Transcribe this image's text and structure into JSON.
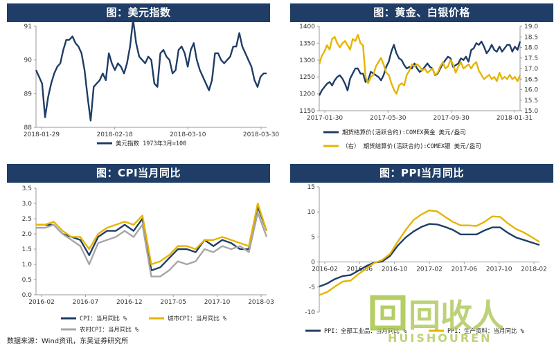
{
  "footer": {
    "source": "数据来源：Wind资讯，东吴证券研究所"
  },
  "watermark": {
    "text": "回收人",
    "sub": "HUISHOUREN"
  },
  "colors": {
    "header_bg": "#1f3d66",
    "navy": "#1f3d66",
    "gold": "#e6b400",
    "gray": "#a6a6a6"
  },
  "chart_data": [
    {
      "id": "usd",
      "type": "line",
      "title": "图：美元指数",
      "x_ticks": [
        "2018-01-29",
        "2018-02-18",
        "2018-03-10",
        "2018-03-30"
      ],
      "ylim": [
        88,
        91
      ],
      "yticks": [
        88,
        89,
        90,
        91
      ],
      "series": [
        {
          "name": "美元指数 1973年3月=100",
          "color": "#1f3d66",
          "values": [
            89.7,
            89.5,
            89.3,
            88.3,
            88.9,
            89.3,
            89.6,
            89.8,
            89.9,
            90.3,
            90.6,
            90.6,
            90.7,
            90.5,
            90.4,
            90.2,
            89.7,
            88.9,
            88.2,
            89.2,
            89.3,
            89.4,
            89.6,
            89.4,
            90.2,
            89.9,
            89.7,
            89.9,
            89.8,
            89.6,
            89.9,
            90.4,
            91.2,
            90.5,
            90.1,
            90.0,
            89.9,
            90.1,
            90.0,
            89.3,
            89.2,
            90.2,
            90.3,
            90.1,
            90.0,
            89.6,
            89.7,
            90.3,
            90.4,
            90.2,
            89.8,
            90.3,
            90.5,
            90.0,
            89.7,
            89.5,
            89.3,
            89.1,
            89.4,
            90.2,
            90.2,
            90.0,
            89.9,
            90.0,
            90.1,
            90.4,
            90.4,
            90.8,
            90.4,
            90.2,
            90.0,
            89.8,
            89.4,
            89.2,
            89.5,
            89.6,
            89.6
          ]
        }
      ]
    },
    {
      "id": "gold",
      "type": "line",
      "title": "图：黄金、白银价格",
      "x_ticks": [
        "2017-01-30",
        "2017-05-30",
        "2017-09-30",
        "2018-01-31"
      ],
      "ylim": [
        1150,
        1400
      ],
      "yticks": [
        1150,
        1200,
        1250,
        1300,
        1350,
        1400
      ],
      "y2lim": [
        15.0,
        19.0
      ],
      "y2ticks": [
        "15.0",
        "15.5",
        "16.0",
        "16.5",
        "17.0",
        "17.5",
        "18.0",
        "18.5",
        "19.0"
      ],
      "series": [
        {
          "name": "期货结算价(活跃合约):COMEX黄金 美元/盎司",
          "axis": "left",
          "color": "#1f3d66",
          "values": [
            1195,
            1210,
            1220,
            1230,
            1235,
            1225,
            1240,
            1250,
            1255,
            1245,
            1230,
            1210,
            1245,
            1260,
            1275,
            1275,
            1260,
            1260,
            1235,
            1240,
            1265,
            1260,
            1255,
            1250,
            1240,
            1255,
            1280,
            1295,
            1325,
            1345,
            1320,
            1305,
            1300,
            1285,
            1275,
            1280,
            1275,
            1290,
            1275,
            1265,
            1270,
            1280,
            1290,
            1280,
            1275,
            1255,
            1260,
            1275,
            1290,
            1300,
            1310,
            1305,
            1280,
            1285,
            1290,
            1305,
            1300,
            1310,
            1295,
            1330,
            1335,
            1350,
            1345,
            1355,
            1340,
            1320,
            1330,
            1345,
            1330,
            1325,
            1340,
            1325,
            1335,
            1345,
            1345,
            1325,
            1340,
            1330,
            1355
          ]
        },
        {
          "name": "（右） 期货结算价(活跃合约):COMEX银 美元/盎司",
          "axis": "right",
          "color": "#e6b400",
          "values": [
            17.2,
            17.6,
            17.8,
            18.1,
            17.9,
            18.4,
            18.5,
            18.2,
            18.0,
            18.2,
            18.3,
            18.1,
            17.9,
            18.4,
            18.3,
            18.6,
            18.2,
            18.1,
            16.6,
            16.3,
            16.6,
            16.7,
            17.1,
            17.3,
            17.5,
            17.2,
            16.8,
            16.7,
            16.3,
            16.0,
            15.8,
            16.2,
            16.3,
            16.2,
            16.7,
            16.9,
            17.2,
            17.1,
            17.2,
            17.1,
            16.9,
            17.0,
            16.8,
            16.9,
            17.0,
            16.7,
            16.8,
            17.1,
            17.3,
            17.0,
            17.1,
            17.4,
            17.2,
            16.8,
            17.1,
            17.3,
            17.0,
            17.1,
            17.2,
            17.0,
            17.2,
            17.3,
            16.9,
            16.7,
            16.5,
            16.6,
            16.7,
            16.5,
            16.6,
            16.4,
            16.8,
            16.5,
            16.6,
            16.5,
            16.7,
            16.5,
            16.6,
            16.4,
            16.7
          ]
        }
      ]
    },
    {
      "id": "cpi",
      "type": "line",
      "title": "图：CPI当月同比",
      "x_ticks": [
        "2016-02",
        "2016-07",
        "2016-12",
        "2017-05",
        "2017-10",
        "2018-03"
      ],
      "ylim": [
        0,
        3.5
      ],
      "yticks": [
        "0.0",
        "0.5",
        "1.0",
        "1.5",
        "2.0",
        "2.5",
        "3.0",
        "3.5"
      ],
      "series": [
        {
          "name": "CPI：当月同比 %",
          "color": "#1f3d66",
          "values": [
            2.3,
            2.3,
            2.3,
            2.0,
            1.9,
            1.8,
            1.3,
            1.9,
            2.1,
            2.1,
            2.3,
            2.1,
            2.5,
            0.8,
            0.9,
            1.2,
            1.5,
            1.5,
            1.4,
            1.8,
            1.6,
            1.8,
            1.7,
            1.5,
            1.5,
            2.9,
            2.1
          ]
        },
        {
          "name": "城市CPI：当月同比 %",
          "color": "#e6b400",
          "values": [
            2.3,
            2.3,
            2.4,
            2.1,
            1.9,
            1.9,
            1.5,
            2.0,
            2.2,
            2.3,
            2.4,
            2.3,
            2.6,
            1.0,
            1.1,
            1.3,
            1.6,
            1.6,
            1.5,
            1.8,
            1.8,
            1.9,
            1.8,
            1.7,
            1.6,
            3.0,
            2.1
          ]
        },
        {
          "name": "农村CPI：当月同比 %",
          "color": "#a6a6a6",
          "values": [
            2.2,
            2.2,
            2.3,
            2.0,
            1.8,
            1.6,
            1.0,
            1.7,
            1.8,
            1.9,
            2.1,
            1.9,
            2.3,
            0.6,
            0.6,
            0.8,
            1.1,
            1.0,
            1.1,
            1.5,
            1.4,
            1.6,
            1.5,
            1.6,
            1.4,
            2.7,
            1.9
          ]
        }
      ]
    },
    {
      "id": "ppi",
      "type": "line",
      "title": "图：PPI当月同比",
      "x_ticks": [
        "2016-02",
        "2016-06",
        "2016-10",
        "2017-02",
        "2017-06",
        "2017-10",
        "2018-02"
      ],
      "ylim": [
        -10,
        15
      ],
      "yticks": [
        -10,
        -5,
        0,
        5,
        10,
        15
      ],
      "series": [
        {
          "name": "PPI：全部工业品：当月同比 %",
          "color": "#1f3d66",
          "values": [
            -4.9,
            -4.3,
            -3.4,
            -2.8,
            -2.6,
            -1.7,
            -0.8,
            -0.1,
            0.1,
            1.2,
            3.3,
            4.9,
            6.1,
            7.0,
            7.6,
            7.5,
            7.0,
            6.4,
            5.5,
            5.5,
            5.5,
            6.3,
            6.9,
            6.9,
            5.8,
            4.9,
            4.4,
            3.9,
            3.4
          ]
        },
        {
          "name": "PPI：生产资料：当月同比 %",
          "color": "#e6b400",
          "values": [
            -6.6,
            -6.0,
            -4.9,
            -3.9,
            -3.7,
            -2.4,
            -1.3,
            -0.2,
            0.4,
            1.6,
            4.1,
            6.4,
            8.4,
            9.5,
            10.3,
            10.1,
            9.0,
            8.0,
            7.3,
            7.3,
            7.2,
            8.0,
            9.1,
            9.0,
            7.7,
            6.6,
            5.9,
            5.0,
            4.0
          ]
        }
      ]
    }
  ]
}
